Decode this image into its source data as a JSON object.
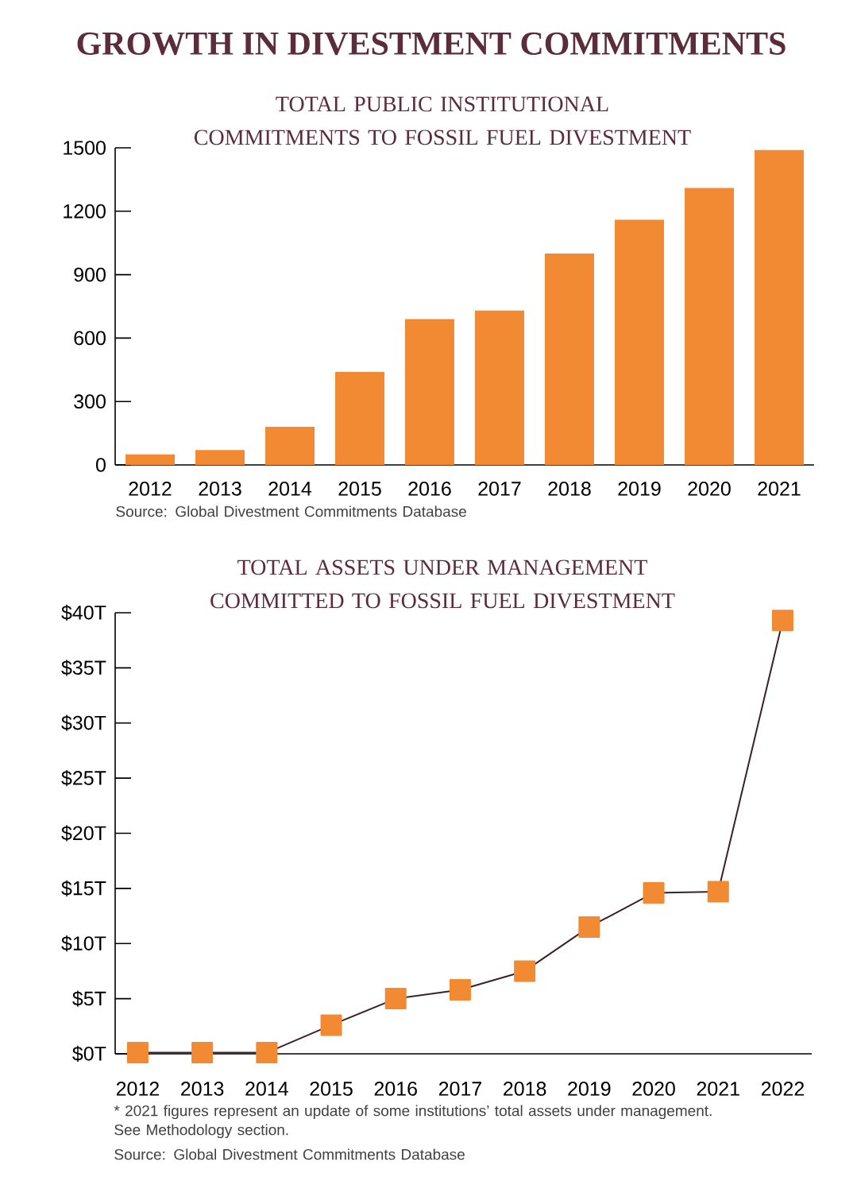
{
  "chart_data": [
    {
      "type": "bar",
      "title": "GROWTH IN DIVESTMENT COMMITMENTS",
      "subtitle": "TOTAL PUBLIC INSTITUTIONAL COMMITMENTS TO FOSSIL FUEL DIVESTMENT",
      "categories": [
        "2012",
        "2013",
        "2014",
        "2015",
        "2016",
        "2017",
        "2018",
        "2019",
        "2020",
        "2021"
      ],
      "values": [
        50,
        70,
        180,
        440,
        690,
        730,
        1000,
        1160,
        1310,
        1490
      ],
      "color": "#f28a33",
      "ylim": [
        0,
        1500
      ],
      "yticks": [
        0,
        300,
        600,
        900,
        1200,
        1500
      ],
      "grid": false,
      "annotations": [
        "Source: Global Divestment Commitments Database"
      ]
    },
    {
      "type": "line",
      "title": "TOTAL ASSETS UNDER MANAGEMENT COMMITTED TO FOSSIL FUEL DIVESTMENT",
      "categories": [
        "2012",
        "2013",
        "2014",
        "2015",
        "2016",
        "2017",
        "2018",
        "2019",
        "2020",
        "2021",
        "2022"
      ],
      "values": [
        0.1,
        0.1,
        0.1,
        2.6,
        5.0,
        5.8,
        7.5,
        11.5,
        14.6,
        14.7,
        39.3
      ],
      "color": "#f28a33",
      "marker": "square",
      "ylim": [
        0,
        40
      ],
      "yticks": [
        {
          "value": 0,
          "label": "$0T"
        },
        {
          "value": 5,
          "label": "$5T"
        },
        {
          "value": 10,
          "label": "$10T"
        },
        {
          "value": 15,
          "label": "$15T"
        },
        {
          "value": 20,
          "label": "$20T"
        },
        {
          "value": 25,
          "label": "$25T"
        },
        {
          "value": 30,
          "label": "$30T"
        },
        {
          "value": 35,
          "label": "$35T"
        },
        {
          "value": 40,
          "label": "$40T"
        }
      ],
      "grid": false,
      "annotations": [
        "* 2021 figures represent an update of some institutions’ total assets under management. See Methodology section.",
        "Source: Global Divestment Commitments Database"
      ]
    }
  ]
}
